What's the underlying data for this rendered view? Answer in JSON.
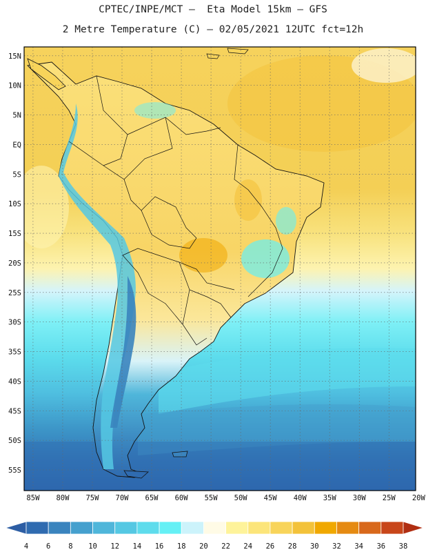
{
  "header": {
    "line1": "CPTEC/INPE/MCT –  Eta Model 15km – GFS",
    "line2": "2 Metre Temperature (C) – 02/05/2021 12UTC fct=12h"
  },
  "map": {
    "region": "South America",
    "lat_labels": [
      "15N",
      "10N",
      "5N",
      "EQ",
      "5S",
      "10S",
      "15S",
      "20S",
      "25S",
      "30S",
      "35S",
      "40S",
      "45S",
      "50S",
      "55S"
    ],
    "lon_labels": [
      "85W",
      "80W",
      "75W",
      "70W",
      "65W",
      "60W",
      "55W",
      "50W",
      "45W",
      "40W",
      "35W",
      "30W",
      "25W",
      "20W"
    ],
    "lat_range": [
      16.5,
      -58.5
    ],
    "lon_range": [
      -86.5,
      -20.5
    ]
  },
  "colorbar": {
    "labels": [
      "4",
      "6",
      "8",
      "10",
      "12",
      "14",
      "16",
      "18",
      "20",
      "22",
      "24",
      "26",
      "28",
      "30",
      "32",
      "34",
      "36",
      "38"
    ],
    "colors": [
      "#2f6bb0",
      "#3a84be",
      "#45a0ce",
      "#4fb6da",
      "#55c8e3",
      "#5edcec",
      "#65f0f5",
      "#ccf3fb",
      "#fffbe6",
      "#fef39a",
      "#fce57a",
      "#f8d45a",
      "#f3c23a",
      "#f0a800",
      "#e58a12",
      "#d8681b",
      "#c8461a",
      "#b82e14"
    ],
    "low_color": "#2d5ea4",
    "high_color": "#b02e12"
  }
}
